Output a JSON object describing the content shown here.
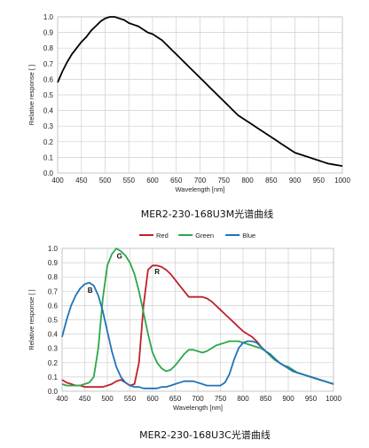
{
  "chart_data": [
    {
      "type": "line",
      "caption": "MER2-230-168U3M光谱曲线",
      "xlabel": "Wavelength [nm]",
      "ylabel": "Relative response [ ]",
      "xlim": [
        400,
        1000
      ],
      "ylim": [
        0,
        1.0
      ],
      "xticks": [
        400,
        450,
        500,
        550,
        600,
        650,
        700,
        750,
        800,
        850,
        900,
        950,
        1000
      ],
      "yticks": [
        0,
        0.1,
        0.2,
        0.3,
        0.4,
        0.5,
        0.6,
        0.7,
        0.8,
        0.9,
        1.0
      ],
      "grid": true,
      "series": [
        {
          "color": "#000000",
          "x": [
            400,
            410,
            420,
            430,
            440,
            450,
            460,
            470,
            480,
            490,
            500,
            510,
            520,
            530,
            540,
            550,
            560,
            570,
            580,
            590,
            600,
            610,
            620,
            630,
            640,
            650,
            660,
            670,
            680,
            690,
            700,
            710,
            720,
            730,
            740,
            750,
            760,
            770,
            780,
            790,
            800,
            810,
            820,
            830,
            840,
            850,
            860,
            870,
            880,
            890,
            900,
            910,
            920,
            930,
            940,
            950,
            960,
            970,
            980,
            990,
            1000
          ],
          "y": [
            0.58,
            0.65,
            0.71,
            0.76,
            0.8,
            0.84,
            0.87,
            0.91,
            0.94,
            0.97,
            0.99,
            1.0,
            1.0,
            0.99,
            0.98,
            0.96,
            0.95,
            0.94,
            0.92,
            0.9,
            0.89,
            0.87,
            0.85,
            0.82,
            0.79,
            0.76,
            0.73,
            0.7,
            0.67,
            0.64,
            0.61,
            0.58,
            0.55,
            0.52,
            0.49,
            0.46,
            0.43,
            0.4,
            0.37,
            0.35,
            0.33,
            0.31,
            0.29,
            0.27,
            0.25,
            0.23,
            0.21,
            0.19,
            0.17,
            0.15,
            0.13,
            0.12,
            0.11,
            0.1,
            0.09,
            0.08,
            0.07,
            0.06,
            0.055,
            0.05,
            0.045
          ]
        }
      ]
    },
    {
      "type": "line",
      "caption": "MER2-230-168U3C光谱曲线",
      "xlabel": "Wavelength [nm]",
      "ylabel": "Relative response [ ]",
      "xlim": [
        400,
        1000
      ],
      "ylim": [
        0,
        1.0
      ],
      "xticks": [
        400,
        450,
        500,
        550,
        600,
        650,
        700,
        750,
        800,
        850,
        900,
        950,
        1000
      ],
      "yticks": [
        0,
        0.1,
        0.2,
        0.3,
        0.4,
        0.5,
        0.6,
        0.7,
        0.8,
        0.9,
        1.0
      ],
      "grid": true,
      "legend_position": "top",
      "series": [
        {
          "name": "Red",
          "label": "R",
          "color": "#c0202a",
          "x": [
            400,
            410,
            420,
            430,
            440,
            450,
            460,
            470,
            480,
            490,
            500,
            510,
            520,
            530,
            540,
            550,
            560,
            570,
            580,
            590,
            600,
            610,
            620,
            630,
            640,
            650,
            660,
            670,
            680,
            690,
            700,
            710,
            720,
            730,
            740,
            750,
            760,
            770,
            780,
            790,
            800,
            810,
            820,
            830,
            840,
            850,
            860,
            870,
            880,
            890,
            900,
            910,
            920,
            930,
            940,
            950,
            960,
            970,
            980,
            990,
            1000
          ],
          "y": [
            0.08,
            0.06,
            0.05,
            0.04,
            0.04,
            0.03,
            0.03,
            0.03,
            0.03,
            0.03,
            0.04,
            0.05,
            0.07,
            0.08,
            0.06,
            0.04,
            0.05,
            0.2,
            0.6,
            0.85,
            0.88,
            0.88,
            0.87,
            0.85,
            0.82,
            0.78,
            0.74,
            0.7,
            0.66,
            0.66,
            0.66,
            0.66,
            0.65,
            0.63,
            0.6,
            0.57,
            0.54,
            0.51,
            0.48,
            0.45,
            0.42,
            0.4,
            0.38,
            0.35,
            0.31,
            0.28,
            0.25,
            0.22,
            0.2,
            0.18,
            0.17,
            0.15,
            0.13,
            0.12,
            0.11,
            0.1,
            0.09,
            0.08,
            0.07,
            0.06,
            0.05
          ]
        },
        {
          "name": "Green",
          "label": "G",
          "color": "#2aa84a",
          "x": [
            400,
            410,
            420,
            430,
            440,
            450,
            460,
            470,
            480,
            490,
            500,
            510,
            520,
            530,
            540,
            550,
            560,
            570,
            580,
            590,
            600,
            610,
            620,
            630,
            640,
            650,
            660,
            670,
            680,
            690,
            700,
            710,
            720,
            730,
            740,
            750,
            760,
            770,
            780,
            790,
            800,
            810,
            820,
            830,
            840,
            850,
            860,
            870,
            880,
            890,
            900,
            910,
            920,
            930,
            940,
            950,
            960,
            970,
            980,
            990,
            1000
          ],
          "y": [
            0.05,
            0.04,
            0.04,
            0.04,
            0.04,
            0.05,
            0.06,
            0.1,
            0.3,
            0.65,
            0.88,
            0.96,
            1.0,
            0.98,
            0.95,
            0.9,
            0.82,
            0.7,
            0.55,
            0.4,
            0.27,
            0.2,
            0.16,
            0.14,
            0.15,
            0.18,
            0.22,
            0.26,
            0.29,
            0.29,
            0.28,
            0.27,
            0.28,
            0.3,
            0.32,
            0.33,
            0.34,
            0.35,
            0.35,
            0.35,
            0.34,
            0.33,
            0.32,
            0.31,
            0.3,
            0.28,
            0.25,
            0.22,
            0.2,
            0.18,
            0.17,
            0.15,
            0.13,
            0.12,
            0.11,
            0.1,
            0.09,
            0.08,
            0.07,
            0.06,
            0.05
          ]
        },
        {
          "name": "Blue",
          "label": "B",
          "color": "#1f73b8",
          "x": [
            400,
            410,
            420,
            430,
            440,
            450,
            460,
            470,
            480,
            490,
            500,
            510,
            520,
            530,
            540,
            550,
            560,
            570,
            580,
            590,
            600,
            610,
            620,
            630,
            640,
            650,
            660,
            670,
            680,
            690,
            700,
            710,
            720,
            730,
            740,
            750,
            760,
            770,
            780,
            790,
            800,
            810,
            820,
            830,
            840,
            850,
            860,
            870,
            880,
            890,
            900,
            910,
            920,
            930,
            940,
            950,
            960,
            970,
            980,
            990,
            1000
          ],
          "y": [
            0.38,
            0.5,
            0.6,
            0.67,
            0.72,
            0.75,
            0.76,
            0.74,
            0.67,
            0.56,
            0.42,
            0.28,
            0.17,
            0.1,
            0.06,
            0.04,
            0.03,
            0.03,
            0.02,
            0.02,
            0.02,
            0.02,
            0.03,
            0.03,
            0.04,
            0.05,
            0.06,
            0.07,
            0.07,
            0.07,
            0.06,
            0.05,
            0.04,
            0.04,
            0.04,
            0.04,
            0.06,
            0.12,
            0.22,
            0.3,
            0.34,
            0.35,
            0.35,
            0.34,
            0.31,
            0.28,
            0.26,
            0.23,
            0.2,
            0.18,
            0.16,
            0.14,
            0.13,
            0.12,
            0.11,
            0.1,
            0.09,
            0.08,
            0.07,
            0.06,
            0.05
          ]
        }
      ]
    }
  ]
}
